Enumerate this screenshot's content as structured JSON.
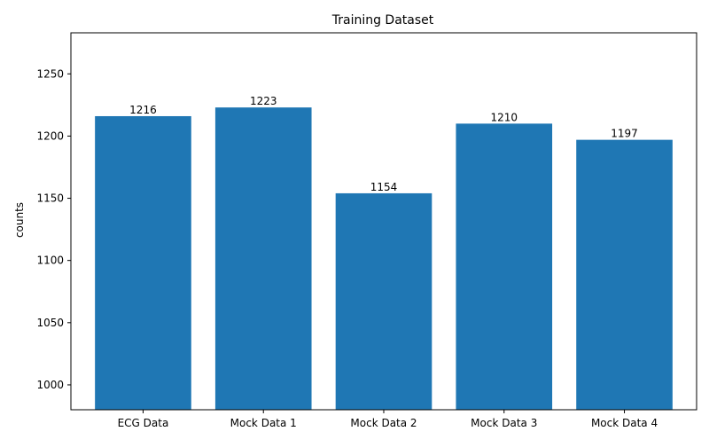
{
  "chart_data": {
    "type": "bar",
    "title": "Training Dataset",
    "xlabel": "",
    "ylabel": "counts",
    "categories": [
      "ECG Data",
      "Mock Data 1",
      "Mock Data 2",
      "Mock Data 3",
      "Mock Data 4"
    ],
    "values": [
      1216,
      1223,
      1154,
      1210,
      1197
    ],
    "data_labels": [
      "1216",
      "1223",
      "1154",
      "1210",
      "1197"
    ],
    "ylim": [
      980,
      1283
    ],
    "yticks": [
      1000,
      1050,
      1100,
      1150,
      1200,
      1250
    ],
    "grid": false,
    "legend": "none",
    "bar_color": "#1f77b4"
  }
}
